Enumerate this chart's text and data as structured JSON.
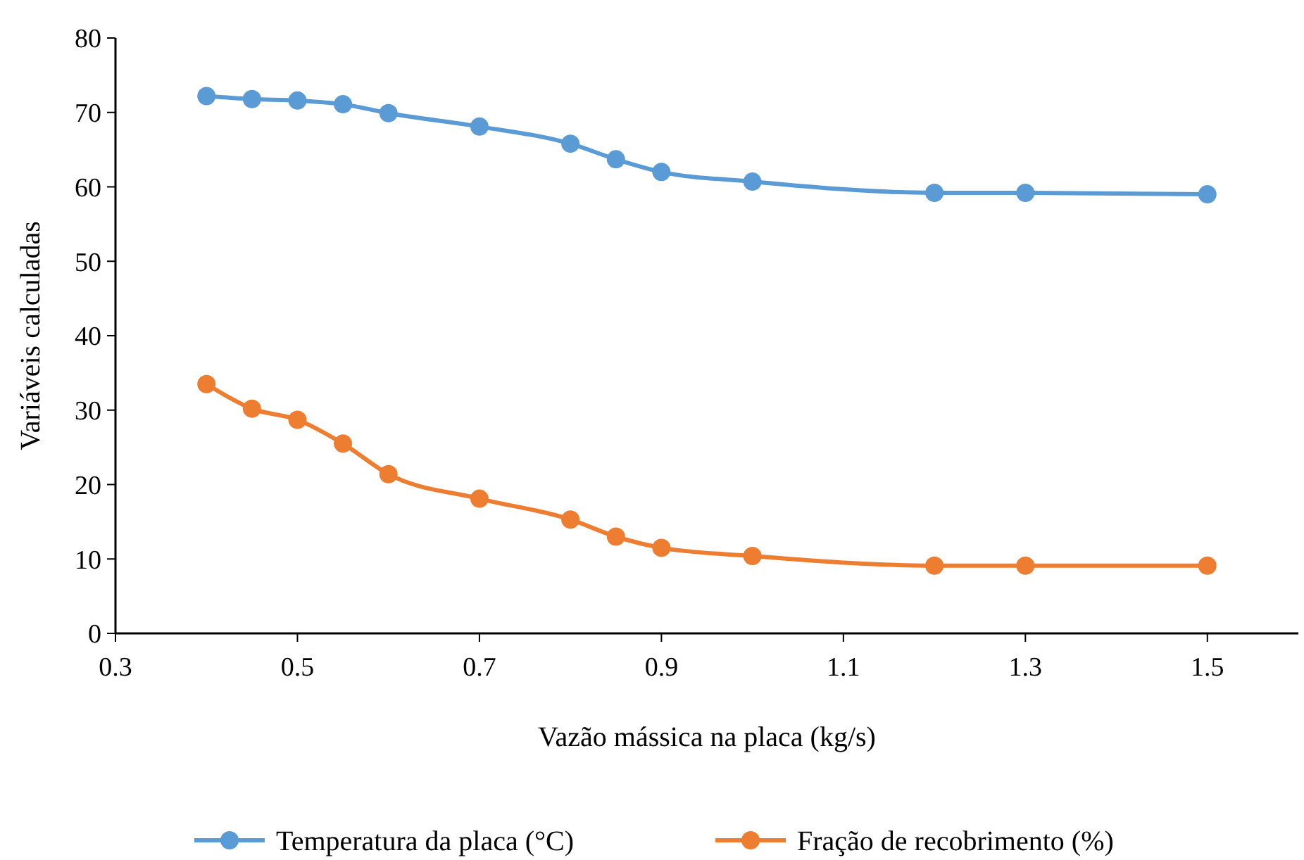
{
  "chart_data": {
    "type": "line",
    "xlabel": "Vazão mássica na placa (kg/s)",
    "ylabel": "Variáveis calculadas",
    "x": [
      0.4,
      0.45,
      0.5,
      0.55,
      0.6,
      0.7,
      0.8,
      0.85,
      0.9,
      1.0,
      1.2,
      1.3,
      1.5
    ],
    "series": [
      {
        "name": "Temperatura da placa (°C)",
        "color": "#5b9bd5",
        "values": [
          72.2,
          71.8,
          71.6,
          71.1,
          69.9,
          68.1,
          65.8,
          63.7,
          62.0,
          60.7,
          59.2,
          59.2,
          59.0
        ]
      },
      {
        "name": "Fração de recobrimento (%)",
        "color": "#ed7d31",
        "values": [
          33.5,
          30.2,
          28.7,
          25.5,
          21.4,
          18.1,
          15.3,
          13.0,
          11.5,
          10.4,
          9.1,
          9.1,
          9.1
        ]
      }
    ],
    "xlim": [
      0.3,
      1.6
    ],
    "xticks": [
      0.3,
      0.5,
      0.7,
      0.9,
      1.1,
      1.3,
      1.5
    ],
    "ylim": [
      0,
      80
    ],
    "yticks": [
      0,
      10,
      20,
      30,
      40,
      50,
      60,
      70,
      80
    ],
    "grid": false,
    "legend": "bottom",
    "marker": "circle",
    "line_style": "solid"
  }
}
